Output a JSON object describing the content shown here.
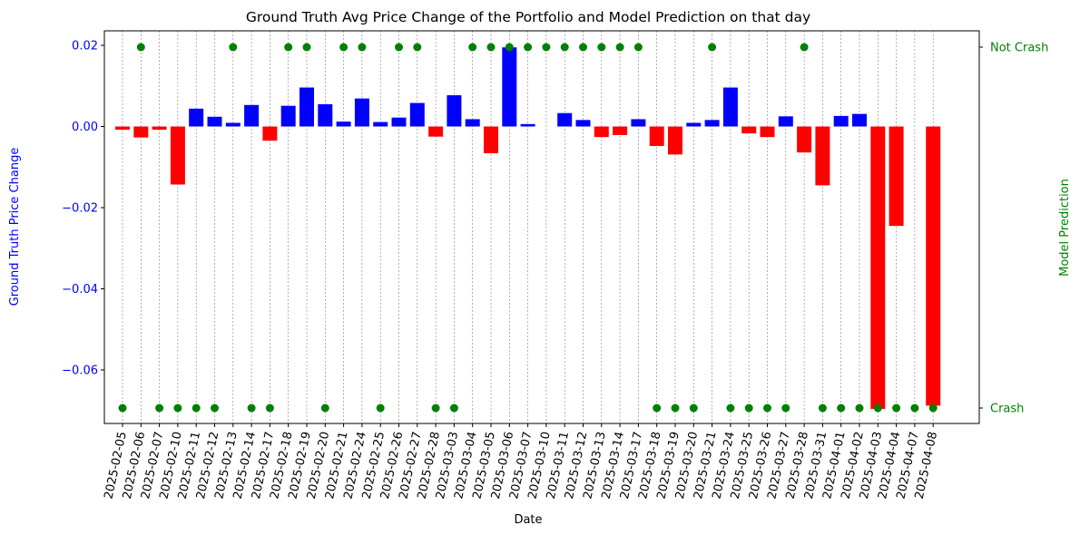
{
  "chart_data": {
    "type": "bar",
    "title": "Ground Truth Avg Price Change of the Portfolio and Model Prediction on that day",
    "xlabel": "Date",
    "ylabel": "Ground Truth Price Change",
    "y2label": "Model Prediction",
    "ylim": [
      -0.0745,
      0.0245
    ],
    "yticks": [
      0.02,
      0.0,
      -0.02,
      -0.04,
      -0.06
    ],
    "ytick_labels": [
      "0.02",
      "0.00",
      "−0.02",
      "−0.04",
      "−0.06"
    ],
    "y2_categories": [
      "Crash",
      "Not Crash"
    ],
    "grid": "vertical dashed lines at each date",
    "categories": [
      "2025-02-05",
      "2025-02-06",
      "2025-02-07",
      "2025-02-10",
      "2025-02-11",
      "2025-02-12",
      "2025-02-13",
      "2025-02-14",
      "2025-02-17",
      "2025-02-18",
      "2025-02-19",
      "2025-02-20",
      "2025-02-21",
      "2025-02-24",
      "2025-02-25",
      "2025-02-26",
      "2025-02-27",
      "2025-02-28",
      "2025-03-03",
      "2025-03-04",
      "2025-03-05",
      "2025-03-06",
      "2025-03-07",
      "2025-03-10",
      "2025-03-11",
      "2025-03-12",
      "2025-03-13",
      "2025-03-14",
      "2025-03-17",
      "2025-03-18",
      "2025-03-19",
      "2025-03-20",
      "2025-03-21",
      "2025-03-24",
      "2025-03-25",
      "2025-03-26",
      "2025-03-27",
      "2025-03-28",
      "2025-03-31",
      "2025-04-01",
      "2025-04-02",
      "2025-04-03",
      "2025-04-04",
      "2025-04-07",
      "2025-04-08"
    ],
    "series": [
      {
        "values": [
          -0.0008,
          -0.0027,
          -0.0008,
          -0.0143,
          0.0044,
          0.0024,
          0.0009,
          0.0053,
          -0.0035,
          0.0051,
          0.0096,
          0.0055,
          0.0012,
          0.0069,
          0.0011,
          0.0022,
          0.0058,
          -0.0025,
          0.0077,
          0.0018,
          -0.0066,
          0.0195,
          0.0006,
          0.0,
          0.0033,
          0.0016,
          -0.0026,
          -0.0021,
          0.0018,
          -0.0048,
          -0.0069,
          0.0009,
          0.0016,
          0.0096,
          -0.0017,
          -0.0026,
          0.0025,
          -0.0064,
          -0.0145,
          0.0026,
          0.0031,
          -0.0696,
          -0.0245,
          0.0,
          -0.0688
        ],
        "colors_by_sign": {
          "positive": "#0000ff",
          "negative": "#ff0000"
        }
      },
      {
        "type": "scatter",
        "color": "#008000",
        "values": [
          "Crash",
          "Not Crash",
          "Crash",
          "Crash",
          "Crash",
          "Crash",
          "Not Crash",
          "Crash",
          "Crash",
          "Not Crash",
          "Not Crash",
          "Crash",
          "Not Crash",
          "Not Crash",
          "Crash",
          "Not Crash",
          "Not Crash",
          "Crash",
          "Crash",
          "Not Crash",
          "Not Crash",
          "Not Crash",
          "Not Crash",
          "Not Crash",
          "Not Crash",
          "Not Crash",
          "Not Crash",
          "Not Crash",
          "Not Crash",
          "Crash",
          "Crash",
          "Crash",
          "Not Crash",
          "Crash",
          "Crash",
          "Crash",
          "Crash",
          "Not Crash",
          "Crash",
          "Crash",
          "Crash",
          "Crash",
          "Crash",
          "Crash",
          "Crash"
        ]
      }
    ]
  }
}
